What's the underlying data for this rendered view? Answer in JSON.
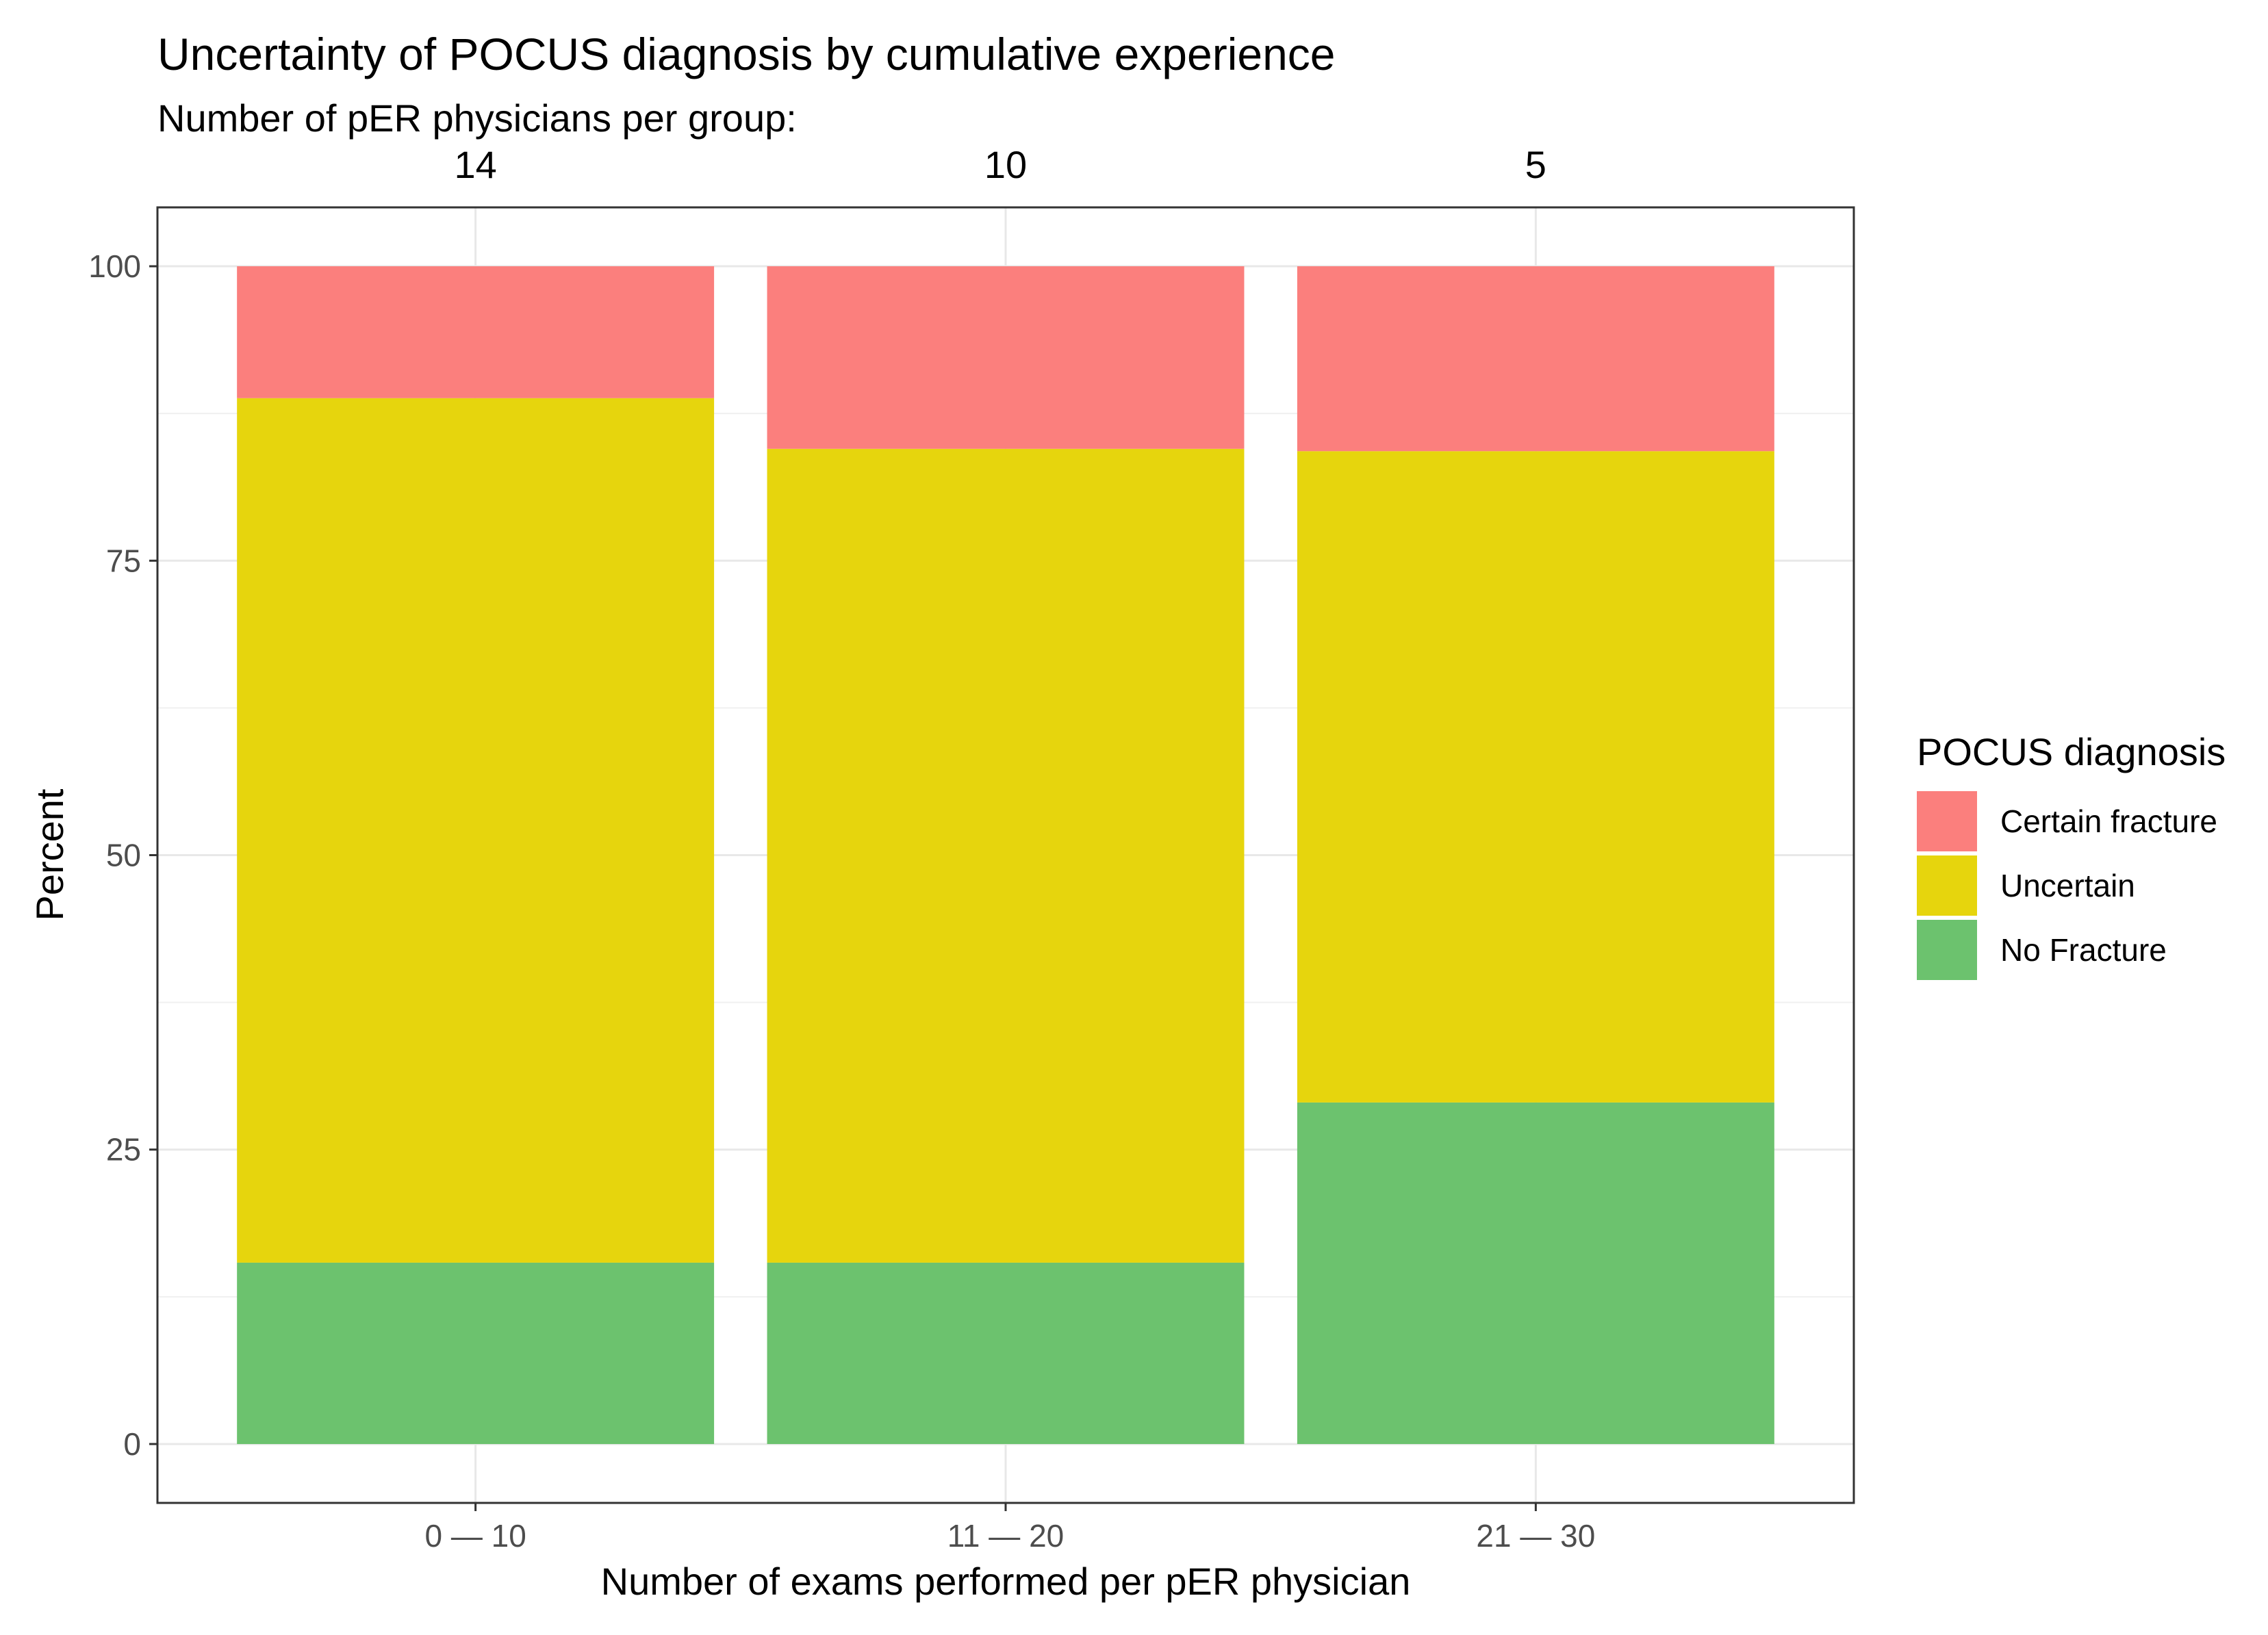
{
  "chart_data": {
    "type": "bar",
    "stacked": true,
    "title": "Uncertainty of POCUS diagnosis by cumulative experience",
    "subtitle": "Number of pER physicians per group:",
    "group_counts": [
      "14",
      "10",
      "5"
    ],
    "categories": [
      "0 — 10",
      "11 — 20",
      "21 — 30"
    ],
    "xlabel": "Number of exams performed per pER physician",
    "ylabel": "Percent",
    "ylim": [
      -5,
      105
    ],
    "yticks": [
      0,
      25,
      50,
      75,
      100
    ],
    "grid": true,
    "series": [
      {
        "name": "No Fracture",
        "color": "#6cc26e",
        "values": [
          15.4,
          15.4,
          29.0
        ]
      },
      {
        "name": "Uncertain",
        "color": "#e6d50d",
        "values": [
          73.4,
          69.1,
          55.3
        ]
      },
      {
        "name": "Certain fracture",
        "color": "#fb7f7d",
        "values": [
          11.2,
          15.5,
          15.7
        ]
      }
    ],
    "legend": {
      "title": "POCUS diagnosis",
      "placement": "right",
      "order": [
        "Certain fracture",
        "Uncertain",
        "No Fracture"
      ]
    }
  }
}
